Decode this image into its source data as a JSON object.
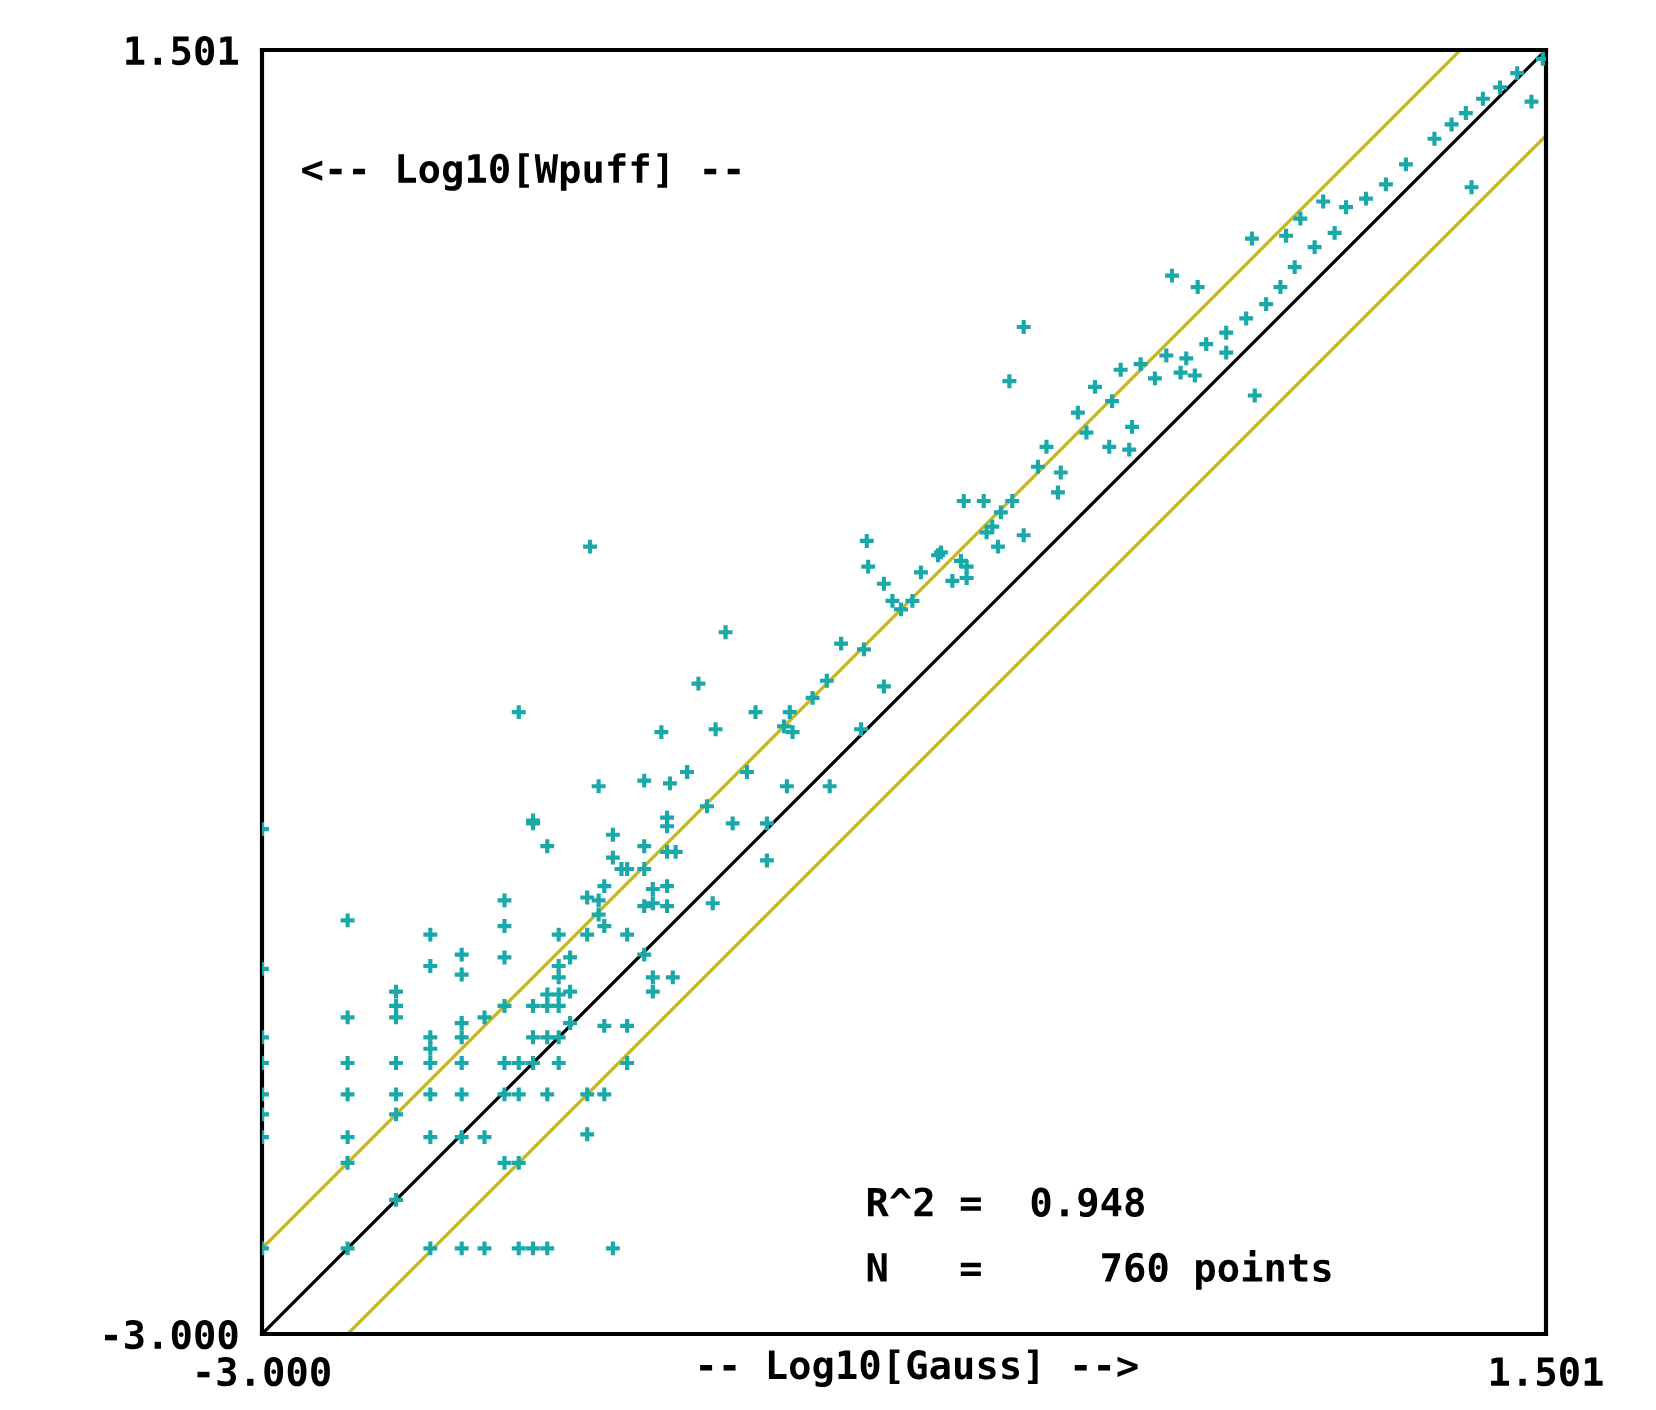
{
  "chart_data": {
    "type": "scatter",
    "xlabel": "-- Log10[Gauss] -->",
    "ylabel": "<-- Log10[Wpuff] --",
    "annotations": [
      "R^2 =  0.948",
      "N   =     760 points"
    ],
    "xlim": [
      -3.0,
      1.501
    ],
    "ylim": [
      -3.0,
      1.501
    ],
    "xticks": [
      {
        "value": -3.0,
        "label": "-3.000"
      },
      1.501
    ],
    "yticks": [
      {
        "value": -3.0,
        "label": "-3.000"
      },
      1.501
    ],
    "legend": false,
    "marker": "cross",
    "series": [
      {
        "type": "line",
        "color": "#000000",
        "marker": "none",
        "x": [
          -3.0,
          1.501
        ],
        "values": [
          -3.0,
          1.501
        ]
      },
      {
        "type": "line",
        "color": "#c8b820",
        "marker": "none",
        "x": [
          -3.0,
          1.201
        ],
        "values": [
          -2.7,
          1.501
        ]
      },
      {
        "type": "line",
        "color": "#c8b820",
        "marker": "none",
        "x": [
          -2.7,
          1.501
        ],
        "values": [
          -3.0,
          1.201
        ]
      },
      {
        "color": "#1aa8a8",
        "x": [
          -3.0,
          -3.0,
          -3.0,
          -3.0,
          -3.0,
          -3.0,
          -3.0,
          -3.0,
          -2.7,
          -2.7,
          -2.7,
          -2.7,
          -2.7,
          -2.7,
          -2.7,
          -2.53,
          -2.53,
          -2.53,
          -2.53,
          -2.53,
          -2.53,
          -2.53,
          -2.41,
          -2.41,
          -2.41,
          -2.41,
          -2.41,
          -2.41,
          -2.41,
          -2.41,
          -2.3,
          -2.3,
          -2.3,
          -2.3,
          -2.3,
          -2.3,
          -2.3,
          -2.3,
          -2.22,
          -2.22,
          -2.22,
          -2.15,
          -2.15,
          -2.15,
          -2.15,
          -2.15,
          -2.15,
          -2.15,
          -2.1,
          -2.1,
          -2.1,
          -2.1,
          -2.05,
          -2.05,
          -2.05,
          -2.05,
          -2.05,
          -2.0,
          -2.0,
          -2.0,
          -2.0,
          -2.0,
          -2.0,
          -1.96,
          -1.96,
          -1.96,
          -1.96,
          -1.96,
          -1.96,
          -1.96,
          -1.92,
          -1.92,
          -1.92,
          -1.86,
          -1.86,
          -1.86,
          -1.86,
          -1.82,
          -1.82,
          -1.82,
          -1.8,
          -1.8,
          -1.8,
          -1.8,
          -1.77,
          -1.77,
          -1.77,
          -1.72,
          -1.72,
          -1.72,
          -1.72,
          -1.66,
          -1.66,
          -1.66,
          -1.66,
          -1.66,
          -1.63,
          -1.63,
          -1.63,
          -1.63,
          -1.58,
          -1.58,
          -1.58,
          -1.58,
          -1.58,
          -1.56,
          -1.51,
          -1.85,
          -2.1,
          -1.375,
          -1.47,
          -0.88,
          -0.875,
          -2.05,
          -1.6,
          -1.41,
          -1.51,
          -1.57,
          -1.44,
          -1.35,
          -1.27,
          -1.17,
          -1.14,
          -1.07,
          -0.97,
          -1.02,
          -0.89,
          -0.82,
          -0.76,
          -0.72,
          -0.63,
          -0.55,
          -0.53,
          -0.54,
          -0.47,
          -0.44,
          -1.16,
          -1.01,
          -0.9,
          -0.82,
          -1.3,
          -1.23,
          -1.74,
          -1.55,
          -1.42,
          -1.23,
          -1.15,
          -0.33,
          -0.38,
          0.19,
          0.28,
          0.47,
          0.48,
          1.24,
          1.45,
          1.49,
          -0.79,
          -0.69,
          -0.62,
          -0.58,
          -0.53,
          -0.46,
          -0.41,
          -0.42,
          -0.33,
          -0.37,
          -0.28,
          -0.25,
          -0.2,
          -0.21,
          -0.14,
          -0.08,
          -0.11,
          -0.03,
          -0.02,
          0.05,
          0.04,
          0.01,
          0.08,
          0.13,
          0.17,
          0.24,
          0.27,
          0.31,
          0.38,
          0.45,
          0.52,
          0.57,
          0.62,
          0.69,
          0.76,
          0.8,
          0.87,
          0.94,
          1.01,
          1.11,
          1.17,
          1.22,
          1.28,
          1.34,
          1.4,
          0.64,
          0.59,
          0.72,
          0.38,
          0.22
        ],
        "values": [
          -1.23,
          -1.72,
          -1.96,
          -2.05,
          -2.16,
          -2.23,
          -2.31,
          -2.7,
          -1.55,
          -1.89,
          -2.05,
          -2.16,
          -2.31,
          -2.4,
          -2.7,
          -1.8,
          -1.85,
          -1.89,
          -2.05,
          -2.16,
          -2.23,
          -2.53,
          -1.6,
          -1.71,
          -1.96,
          -2.0,
          -2.05,
          -2.16,
          -2.31,
          -2.7,
          -1.67,
          -1.74,
          -1.91,
          -1.96,
          -2.05,
          -2.16,
          -2.31,
          -2.7,
          -1.89,
          -2.31,
          -2.7,
          -1.48,
          -1.57,
          -1.68,
          -1.85,
          -2.05,
          -2.16,
          -2.4,
          -2.05,
          -2.16,
          -2.4,
          -2.7,
          -1.21,
          -1.85,
          -1.96,
          -2.05,
          -2.7,
          -1.29,
          -1.81,
          -1.85,
          -1.96,
          -2.16,
          -2.7,
          -1.6,
          -1.71,
          -1.75,
          -1.81,
          -1.85,
          -1.96,
          -2.05,
          -1.68,
          -1.8,
          -1.91,
          -1.47,
          -1.6,
          -2.16,
          -2.3,
          -1.08,
          -1.48,
          -1.53,
          -1.43,
          -1.57,
          -1.92,
          -2.16,
          -1.25,
          -1.33,
          -2.7,
          -1.37,
          -1.6,
          -1.92,
          -2.05,
          -1.06,
          -1.29,
          -1.37,
          -1.5,
          -1.67,
          -1.44,
          -1.49,
          -1.75,
          -1.8,
          -1.19,
          -1.22,
          -1.31,
          -1.43,
          -1.5,
          -1.75,
          -1.03,
          -0.24,
          -0.82,
          -0.54,
          -0.72,
          -0.22,
          -0.31,
          -1.2,
          -0.89,
          -0.88,
          -1.03,
          -1.07,
          -1.15,
          -1.21,
          -0.82,
          -0.87,
          -0.89,
          -0.77,
          -0.58,
          -0.71,
          -0.6,
          -0.37,
          -0.46,
          -0.43,
          -0.27,
          -0.29,
          -0.35,
          -0.08,
          -0.08,
          -0.17,
          -1.08,
          -1.08,
          -0.88,
          -0.73,
          -1.03,
          -1.21,
          -1.37,
          -1.31,
          -1.49,
          -1.34,
          -0.82,
          0.53,
          0.34,
          0.71,
          0.67,
          0.84,
          0.29,
          1.02,
          1.32,
          1.47,
          -0.43,
          -0.33,
          -0.26,
          -0.36,
          -0.31,
          -0.19,
          -0.12,
          -0.24,
          -0.2,
          -0.08,
          0.04,
          0.11,
          0.02,
          -0.05,
          0.23,
          0.32,
          0.16,
          0.11,
          0.27,
          0.18,
          0.1,
          0.38,
          0.4,
          0.35,
          0.43,
          0.42,
          0.36,
          0.47,
          0.51,
          0.56,
          0.61,
          0.67,
          0.74,
          0.81,
          0.86,
          0.95,
          0.98,
          1.03,
          1.1,
          1.19,
          1.24,
          1.28,
          1.33,
          1.37,
          1.42,
          0.91,
          0.85,
          0.97,
          0.44,
          0.37
        ]
      }
    ]
  }
}
